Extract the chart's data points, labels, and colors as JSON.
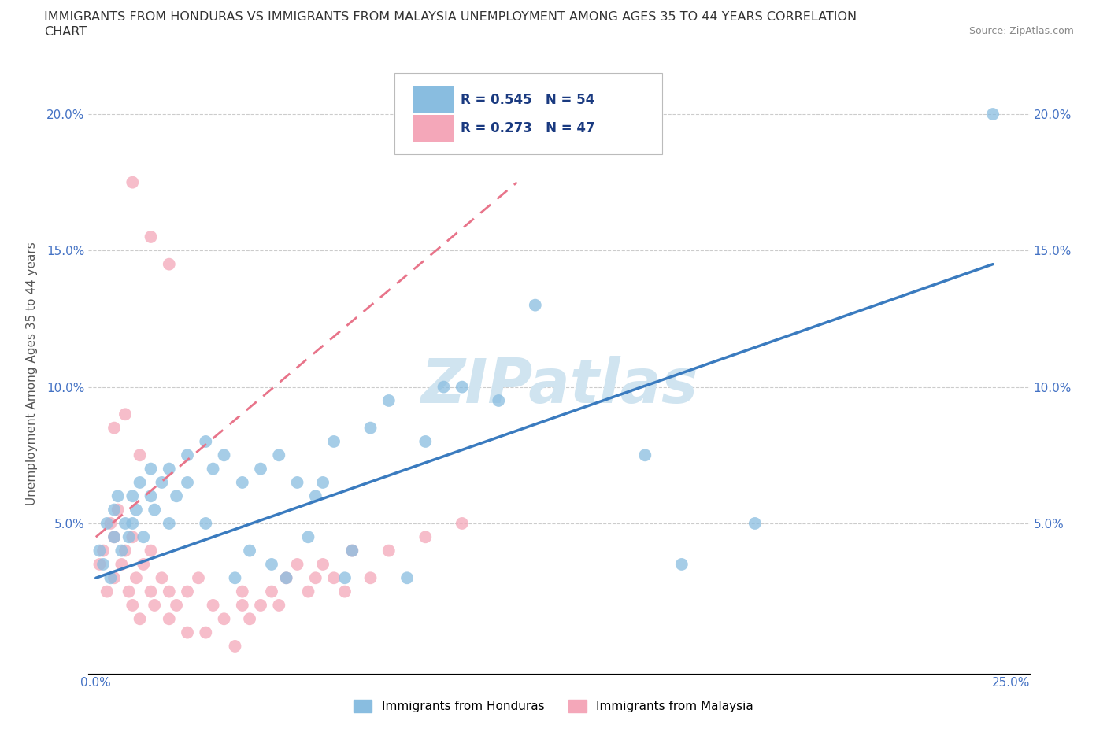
{
  "title_line1": "IMMIGRANTS FROM HONDURAS VS IMMIGRANTS FROM MALAYSIA UNEMPLOYMENT AMONG AGES 35 TO 44 YEARS CORRELATION",
  "title_line2": "CHART",
  "source": "Source: ZipAtlas.com",
  "ylabel": "Unemployment Among Ages 35 to 44 years",
  "xlim": [
    -0.002,
    0.255
  ],
  "ylim": [
    -0.005,
    0.215
  ],
  "ytick_vals": [
    0.05,
    0.1,
    0.15,
    0.2
  ],
  "ytick_labels": [
    "5.0%",
    "10.0%",
    "15.0%",
    "20.0%"
  ],
  "xtick_vals": [
    0.0,
    0.05,
    0.1,
    0.15,
    0.2,
    0.25
  ],
  "xtick_labels": [
    "0.0%",
    "",
    "",
    "",
    "",
    "25.0%"
  ],
  "honduras_R": 0.545,
  "honduras_N": 54,
  "malaysia_R": 0.273,
  "malaysia_N": 47,
  "honduras_color": "#89bde0",
  "malaysia_color": "#f4a7b9",
  "honduras_line_color": "#3a7bbf",
  "malaysia_line_color": "#e8748a",
  "tick_label_color": "#4472c4",
  "watermark": "ZIPatlas",
  "watermark_color": "#d0e4f0",
  "legend_label_honduras": "Immigrants from Honduras",
  "legend_label_malaysia": "Immigrants from Malaysia",
  "honduras_x": [
    0.001,
    0.002,
    0.003,
    0.004,
    0.005,
    0.005,
    0.006,
    0.007,
    0.008,
    0.009,
    0.01,
    0.01,
    0.011,
    0.012,
    0.013,
    0.015,
    0.015,
    0.016,
    0.018,
    0.02,
    0.02,
    0.022,
    0.025,
    0.025,
    0.03,
    0.03,
    0.032,
    0.035,
    0.038,
    0.04,
    0.042,
    0.045,
    0.048,
    0.05,
    0.052,
    0.055,
    0.058,
    0.06,
    0.062,
    0.065,
    0.068,
    0.07,
    0.075,
    0.08,
    0.085,
    0.09,
    0.095,
    0.1,
    0.11,
    0.12,
    0.15,
    0.16,
    0.18,
    0.245
  ],
  "honduras_y": [
    0.04,
    0.035,
    0.05,
    0.03,
    0.045,
    0.055,
    0.06,
    0.04,
    0.05,
    0.045,
    0.05,
    0.06,
    0.055,
    0.065,
    0.045,
    0.06,
    0.07,
    0.055,
    0.065,
    0.05,
    0.07,
    0.06,
    0.075,
    0.065,
    0.08,
    0.05,
    0.07,
    0.075,
    0.03,
    0.065,
    0.04,
    0.07,
    0.035,
    0.075,
    0.03,
    0.065,
    0.045,
    0.06,
    0.065,
    0.08,
    0.03,
    0.04,
    0.085,
    0.095,
    0.03,
    0.08,
    0.1,
    0.1,
    0.095,
    0.13,
    0.075,
    0.035,
    0.05,
    0.2
  ],
  "malaysia_x": [
    0.001,
    0.002,
    0.003,
    0.004,
    0.005,
    0.005,
    0.006,
    0.007,
    0.008,
    0.009,
    0.01,
    0.01,
    0.011,
    0.012,
    0.013,
    0.015,
    0.015,
    0.016,
    0.018,
    0.02,
    0.02,
    0.022,
    0.025,
    0.025,
    0.028,
    0.03,
    0.032,
    0.035,
    0.038,
    0.04,
    0.04,
    0.042,
    0.045,
    0.048,
    0.05,
    0.052,
    0.055,
    0.058,
    0.06,
    0.062,
    0.065,
    0.068,
    0.07,
    0.075,
    0.08,
    0.09,
    0.1
  ],
  "malaysia_y": [
    0.035,
    0.04,
    0.025,
    0.05,
    0.045,
    0.03,
    0.055,
    0.035,
    0.04,
    0.025,
    0.02,
    0.045,
    0.03,
    0.015,
    0.035,
    0.025,
    0.04,
    0.02,
    0.03,
    0.025,
    0.015,
    0.02,
    0.025,
    0.01,
    0.03,
    0.01,
    0.02,
    0.015,
    0.005,
    0.02,
    0.025,
    0.015,
    0.02,
    0.025,
    0.02,
    0.03,
    0.035,
    0.025,
    0.03,
    0.035,
    0.03,
    0.025,
    0.04,
    0.03,
    0.04,
    0.045,
    0.05
  ],
  "malaysia_outliers_x": [
    0.01,
    0.015,
    0.02,
    0.005,
    0.008,
    0.012
  ],
  "malaysia_outliers_y": [
    0.175,
    0.155,
    0.145,
    0.085,
    0.09,
    0.075
  ],
  "honduras_line_x": [
    0.0,
    0.245
  ],
  "honduras_line_y": [
    0.03,
    0.145
  ],
  "malaysia_line_x": [
    0.0,
    0.115
  ],
  "malaysia_line_y": [
    0.045,
    0.175
  ]
}
